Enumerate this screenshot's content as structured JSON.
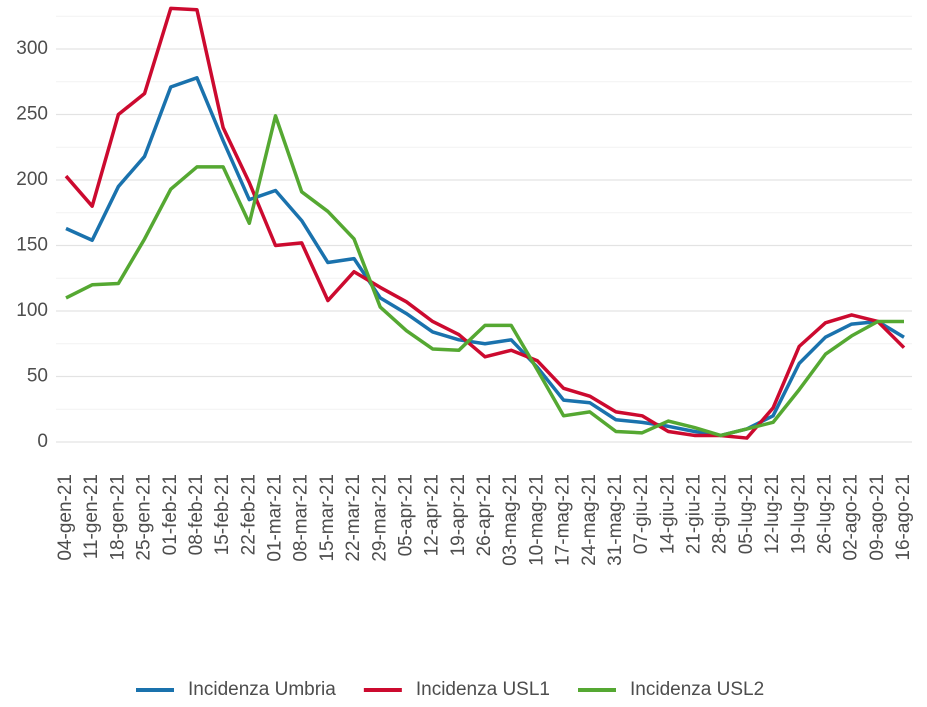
{
  "chart_data": {
    "type": "line",
    "categories": [
      "04-gen-21",
      "11-gen-21",
      "18-gen-21",
      "25-gen-21",
      "01-feb-21",
      "08-feb-21",
      "15-feb-21",
      "22-feb-21",
      "01-mar-21",
      "08-mar-21",
      "15-mar-21",
      "22-mar-21",
      "29-mar-21",
      "05-apr-21",
      "12-apr-21",
      "19-apr-21",
      "26-apr-21",
      "03-mag-21",
      "10-mag-21",
      "17-mag-21",
      "24-mag-21",
      "31-mag-21",
      "07-giu-21",
      "14-giu-21",
      "21-giu-21",
      "28-giu-21",
      "05-lug-21",
      "12-lug-21",
      "19-lug-21",
      "26-lug-21",
      "02-ago-21",
      "09-ago-21",
      "16-ago-21"
    ],
    "series": [
      {
        "name": "Incidenza Umbria",
        "color": "#1a72ad",
        "values": [
          163,
          154,
          195,
          218,
          271,
          278,
          230,
          185,
          192,
          169,
          137,
          140,
          110,
          98,
          84,
          78,
          75,
          78,
          57,
          32,
          30,
          17,
          15,
          12,
          8,
          5,
          10,
          20,
          60,
          80,
          90,
          92,
          80
        ]
      },
      {
        "name": "Incidenza USL1",
        "color": "#cc0a2f",
        "values": [
          203,
          180,
          250,
          266,
          331,
          330,
          240,
          198,
          150,
          152,
          108,
          130,
          118,
          107,
          92,
          82,
          65,
          70,
          62,
          41,
          35,
          23,
          20,
          8,
          5,
          5,
          3,
          26,
          73,
          91,
          97,
          92,
          72
        ]
      },
      {
        "name": "Incidenza USL2",
        "color": "#55a832",
        "values": [
          110,
          120,
          121,
          155,
          193,
          210,
          210,
          167,
          249,
          191,
          176,
          155,
          103,
          85,
          71,
          70,
          89,
          89,
          55,
          20,
          23,
          8,
          7,
          16,
          11,
          5,
          10,
          15,
          40,
          67,
          81,
          92,
          92
        ]
      }
    ],
    "ylim": [
      -5,
      330
    ],
    "yticks": [
      0,
      50,
      100,
      150,
      200,
      250,
      300
    ],
    "minor_yticks": [
      25,
      75,
      125,
      175,
      225,
      275,
      325
    ],
    "grid": true,
    "legend": "bottom"
  }
}
